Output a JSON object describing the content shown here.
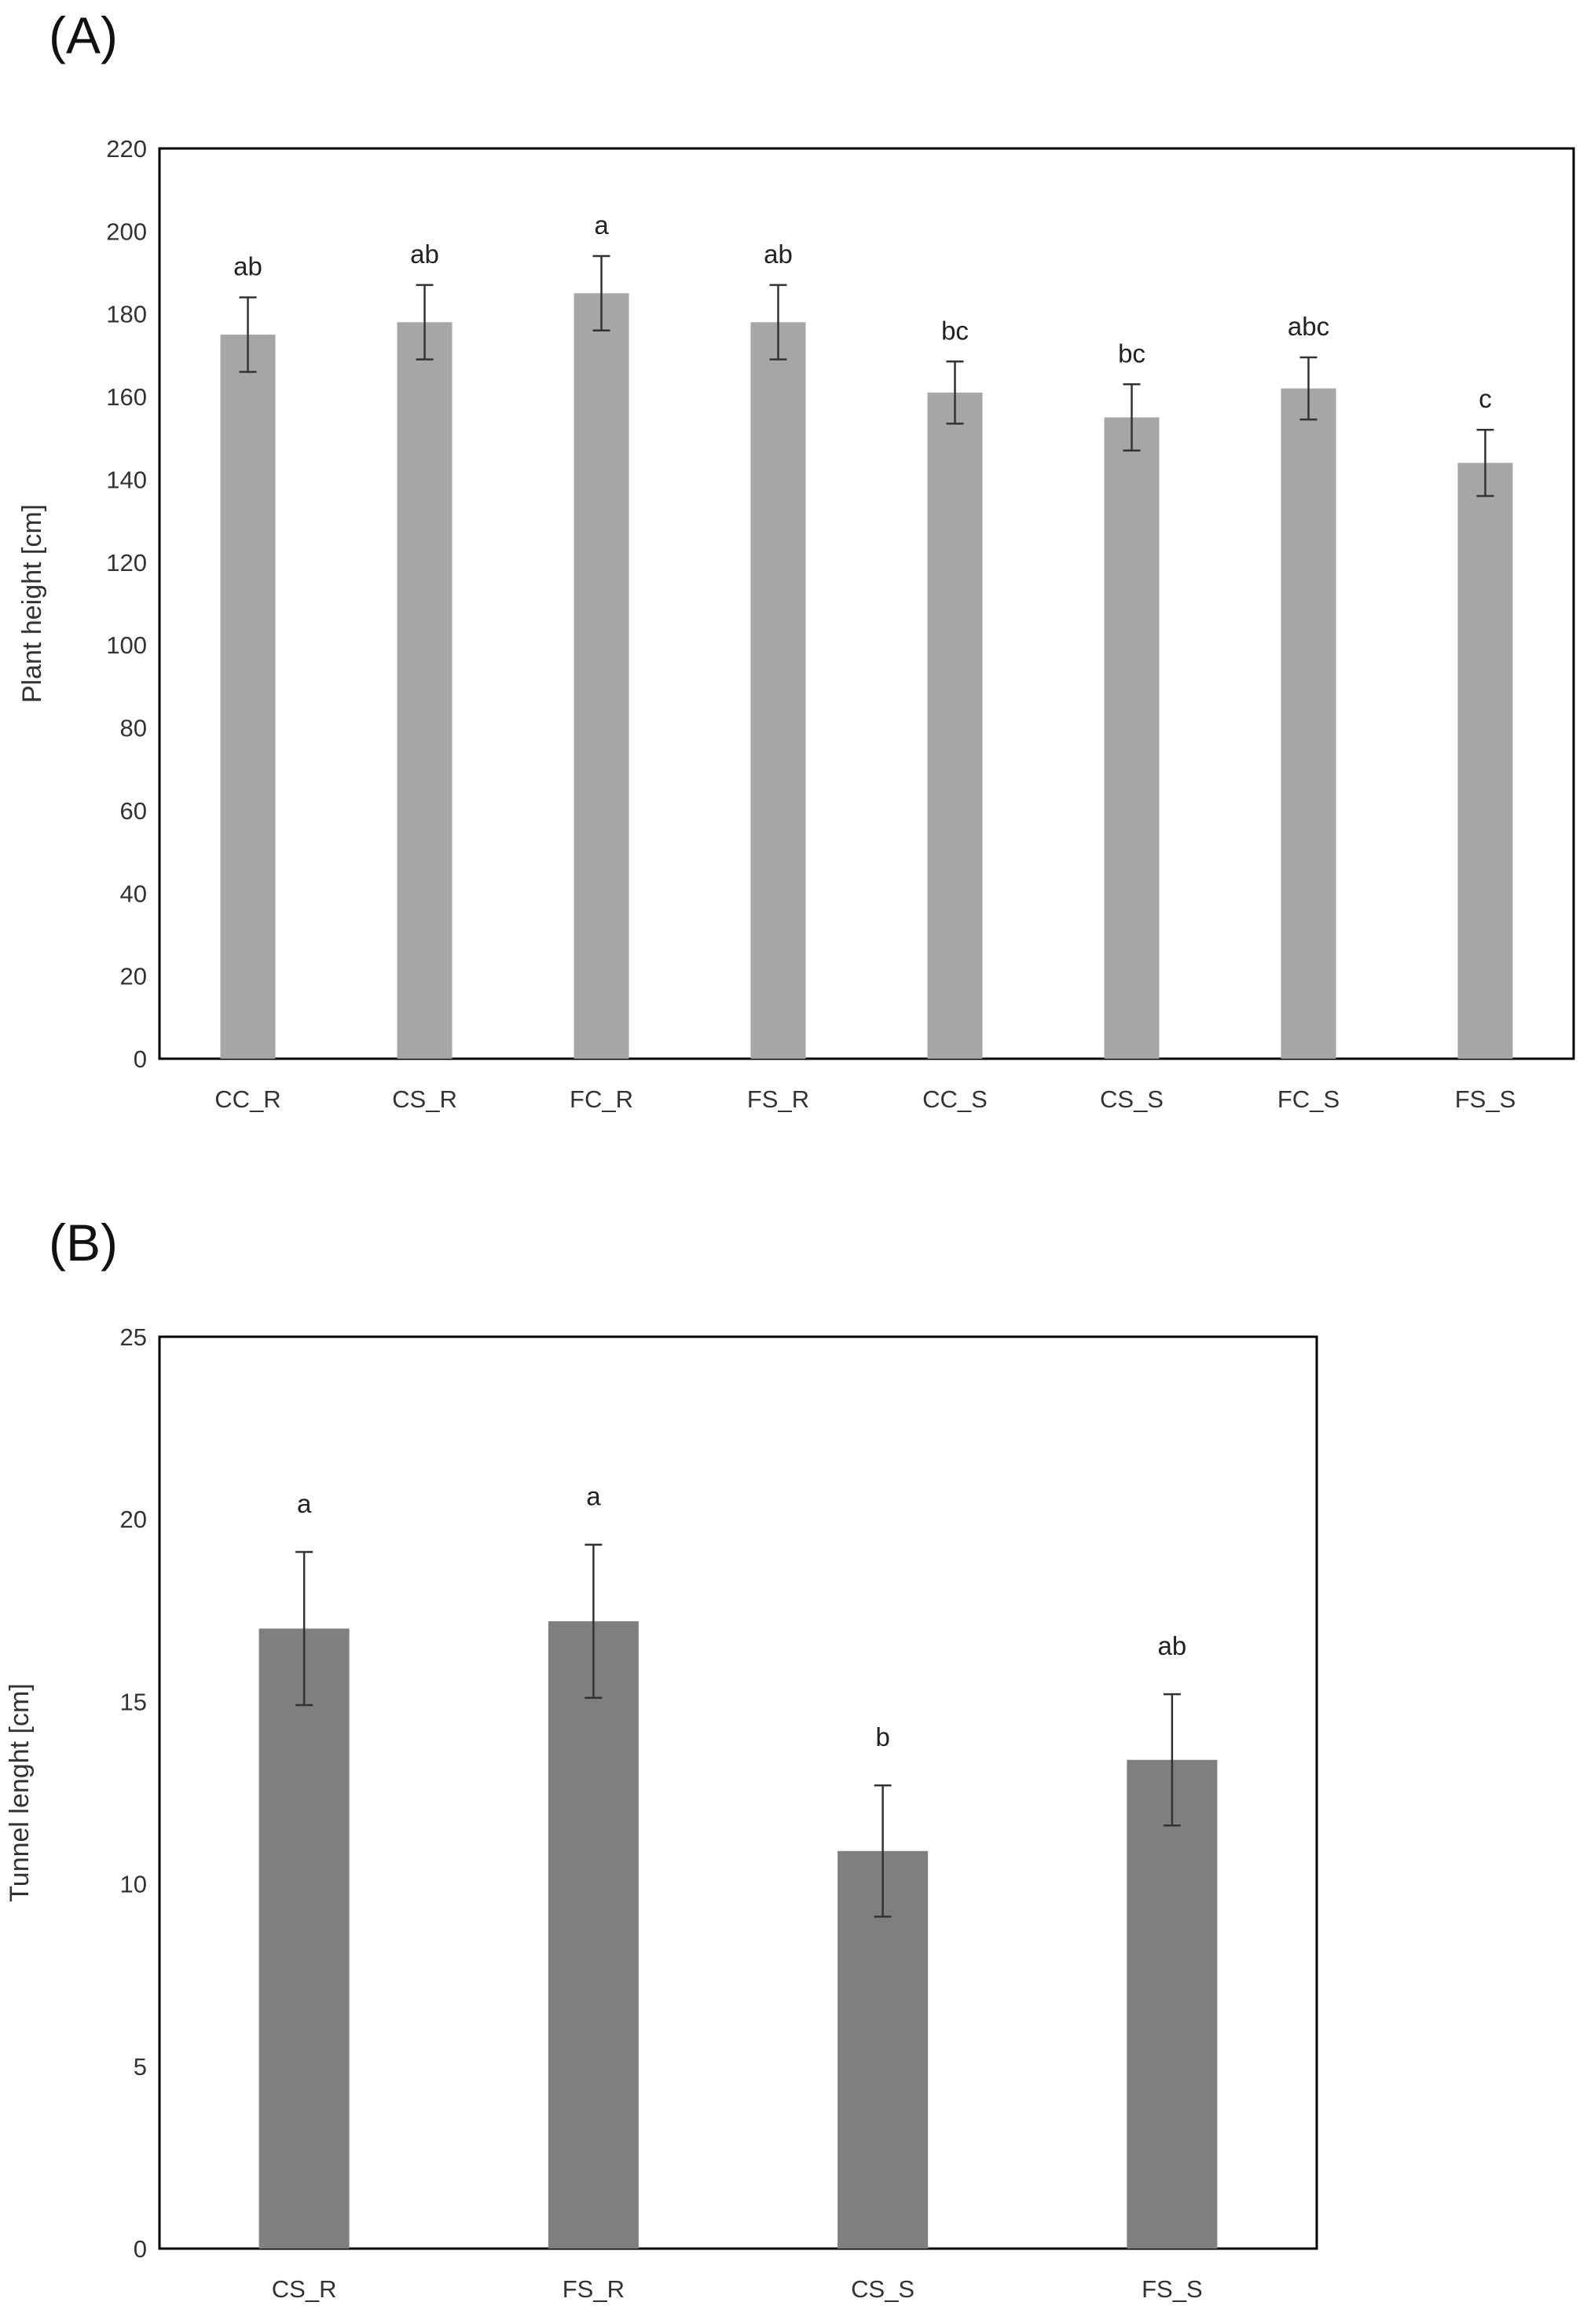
{
  "panels": [
    {
      "label": "(A)"
    },
    {
      "label": "(B)"
    }
  ],
  "chart_data": [
    {
      "type": "bar",
      "title": "",
      "xlabel": "",
      "ylabel": "Plant height [cm]",
      "ylim": [
        0,
        220
      ],
      "yticks": [
        "0",
        "20",
        "40",
        "60",
        "80",
        "100",
        "120",
        "140",
        "160",
        "180",
        "200",
        "220"
      ],
      "grid": false,
      "bar_color": "#a6a6a6",
      "categories": [
        "CC_R",
        "CS_R",
        "FC_R",
        "FS_R",
        "CC_S",
        "CS_S",
        "FC_S",
        "FS_S"
      ],
      "values": [
        175,
        178,
        185,
        178,
        161,
        155,
        162,
        144
      ],
      "errors": [
        9,
        9,
        9,
        9,
        7.5,
        8,
        7.5,
        8
      ],
      "significance": [
        "ab",
        "ab",
        "a",
        "ab",
        "bc",
        "bc",
        "abc",
        "c"
      ]
    },
    {
      "type": "bar",
      "title": "",
      "xlabel": "",
      "ylabel": "Tunnel lenght [cm]",
      "ylim": [
        0,
        25
      ],
      "yticks": [
        "0",
        "5",
        "10",
        "15",
        "20",
        "25"
      ],
      "grid": false,
      "bar_color": "#7f7f7f",
      "categories": [
        "CS_R",
        "FS_R",
        "CS_S",
        "FS_S"
      ],
      "values": [
        17.0,
        17.2,
        10.9,
        13.4
      ],
      "errors": [
        2.1,
        2.1,
        1.8,
        1.8
      ],
      "significance": [
        "a",
        "a",
        "b",
        "ab"
      ]
    }
  ]
}
